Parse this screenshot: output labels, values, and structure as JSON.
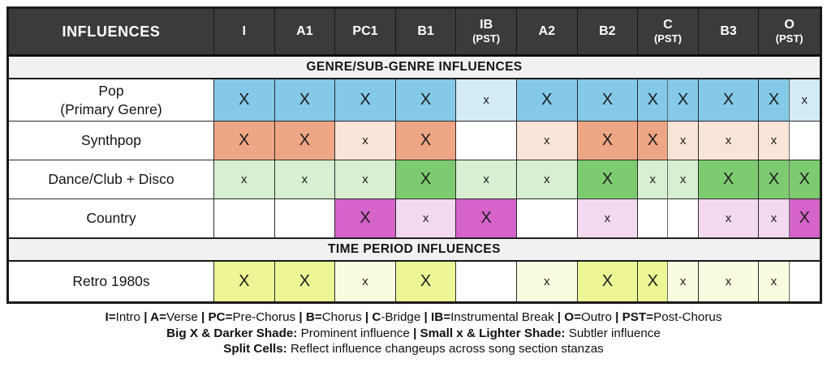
{
  "chart_data": {
    "type": "table",
    "title": "INFLUENCES",
    "colors": {
      "header_bg": "#3B3B3B",
      "header_text": "#FFFFFF",
      "section_bg": "#F1F1F1",
      "mark_text": "#1C1C1C"
    },
    "header": {
      "influences": "INFLUENCES",
      "columns": [
        {
          "label": "I"
        },
        {
          "label": "A1"
        },
        {
          "label": "PC1"
        },
        {
          "label": "B1"
        },
        {
          "label": "IB",
          "sub": "(PST)"
        },
        {
          "label": "A2"
        },
        {
          "label": "B2"
        },
        {
          "label": "C",
          "sub": "(PST)",
          "split": true
        },
        {
          "label": "B3"
        },
        {
          "label": "O",
          "sub": "(PST)",
          "split": true
        }
      ]
    },
    "cell_column_ids": [
      "i",
      "a1",
      "pc1",
      "b1",
      "ib-pst",
      "a2",
      "b2",
      "c-pst-a",
      "c-pst-b",
      "b3",
      "o-pst-a",
      "o-pst-b"
    ],
    "sections": [
      {
        "title": "GENRE/SUB-GENRE INFLUENCES",
        "rows": [
          {
            "label": "Pop",
            "sublabel": "(Primary Genre)",
            "colors": {
              "strong": "#85C9E8",
              "light": "#D2EBF7"
            },
            "cells": [
              "X",
              "X",
              "X",
              "X",
              "x",
              "X",
              "X",
              "X",
              "X",
              "X",
              "X",
              "x"
            ]
          },
          {
            "label": "Synthpop",
            "colors": {
              "strong": "#EFA684",
              "light": "#FBE4D8"
            },
            "cells": [
              "X",
              "X",
              "x",
              "X",
              "",
              "x",
              "X",
              "X",
              "x",
              "x",
              "x",
              ""
            ]
          },
          {
            "label": "Dance/Club + Disco",
            "colors": {
              "strong": "#7DCB70",
              "light": "#D8EFD2"
            },
            "cells": [
              "x",
              "x",
              "x",
              "X",
              "x",
              "x",
              "X",
              "x",
              "x",
              "X",
              "X",
              "X"
            ]
          },
          {
            "label": "Country",
            "colors": {
              "strong": "#D563C9",
              "light": "#F3D9F0"
            },
            "cells": [
              "",
              "",
              "X",
              "x",
              "X",
              "",
              "x",
              "",
              "",
              "x",
              "x",
              "X"
            ]
          }
        ]
      },
      {
        "title": "TIME PERIOD INFLUENCES",
        "rows": [
          {
            "label": "Retro 1980s",
            "colors": {
              "strong": "#EEF595",
              "light": "#FAFCE0"
            },
            "cells": [
              "X",
              "X",
              "x",
              "X",
              "",
              "x",
              "X",
              "X",
              "x",
              "x",
              "x",
              ""
            ]
          }
        ]
      }
    ],
    "legend_lines": [
      {
        "segments": [
          [
            "I=",
            1
          ],
          [
            "Intro ",
            0
          ],
          [
            "| ",
            1
          ],
          [
            "A=",
            1
          ],
          [
            "Verse ",
            0
          ],
          [
            "| ",
            1
          ],
          [
            "PC=",
            1
          ],
          [
            "Pre-Chorus ",
            0
          ],
          [
            "| ",
            1
          ],
          [
            "B=",
            1
          ],
          [
            "Chorus ",
            0
          ],
          [
            "| ",
            1
          ],
          [
            "C",
            1
          ],
          [
            "-Bridge ",
            0
          ],
          [
            "| ",
            1
          ],
          [
            "IB=",
            1
          ],
          [
            "Instrumental Break ",
            0
          ],
          [
            "| ",
            1
          ],
          [
            "O=",
            1
          ],
          [
            "Outro ",
            0
          ],
          [
            "| ",
            1
          ],
          [
            "PST=",
            1
          ],
          [
            "Post-Chorus",
            0
          ]
        ]
      },
      {
        "segments": [
          [
            "Big X & Darker Shade:",
            1
          ],
          [
            " Prominent influence ",
            0
          ],
          [
            "| ",
            1
          ],
          [
            "Small x & Lighter Shade:",
            1
          ],
          [
            " Subtler influence",
            0
          ]
        ]
      },
      {
        "segments": [
          [
            "Split Cells:",
            1
          ],
          [
            " Reflect influence changeups across song section stanzas",
            0
          ]
        ]
      }
    ]
  }
}
